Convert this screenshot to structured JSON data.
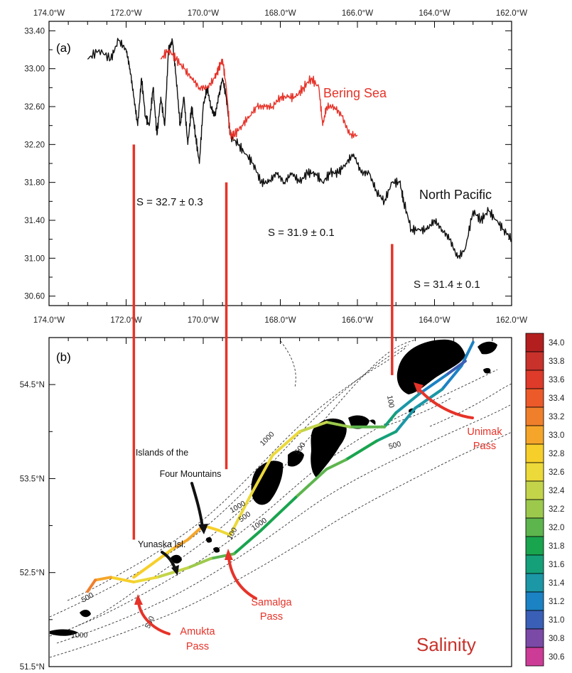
{
  "chart_data": [
    {
      "type": "line",
      "panel_label": "(a)",
      "x_ticks": [
        "174.0°W",
        "172.0°W",
        "170.0°W",
        "168.0°W",
        "166.0°W",
        "164.0°W",
        "162.0°W"
      ],
      "x_tick_values": [
        174,
        172,
        170,
        168,
        166,
        164,
        162
      ],
      "y_ticks": [
        "33.40",
        "33.00",
        "32.60",
        "32.20",
        "31.80",
        "31.40",
        "31.00",
        "30.60"
      ],
      "y_tick_values": [
        33.4,
        33.0,
        32.6,
        32.2,
        31.8,
        31.4,
        31.0,
        30.6
      ],
      "xlim": [
        174,
        162
      ],
      "ylim": [
        30.5,
        33.5
      ],
      "series": [
        {
          "name": "North Pacific",
          "color": "#111111",
          "x": [
            173.0,
            172.7,
            172.4,
            172.2,
            172.0,
            171.9,
            171.8,
            171.7,
            171.6,
            171.5,
            171.4,
            171.3,
            171.2,
            171.1,
            171.0,
            170.9,
            170.8,
            170.7,
            170.6,
            170.5,
            170.4,
            170.3,
            170.2,
            170.1,
            170.0,
            169.9,
            169.8,
            169.7,
            169.6,
            169.5,
            169.4,
            169.3,
            169.1,
            168.9,
            168.7,
            168.5,
            168.3,
            168.1,
            167.9,
            167.7,
            167.5,
            167.3,
            167.1,
            166.9,
            166.7,
            166.5,
            166.3,
            166.1,
            165.9,
            165.7,
            165.5,
            165.3,
            165.1,
            164.9,
            164.8,
            164.6,
            164.4,
            164.2,
            164.0,
            163.8,
            163.6,
            163.4,
            163.2,
            163.0,
            162.8,
            162.6,
            162.4,
            162.2,
            162.0
          ],
          "y": [
            33.1,
            33.2,
            33.1,
            33.3,
            33.2,
            33.0,
            32.7,
            32.4,
            32.9,
            32.5,
            32.4,
            32.8,
            32.3,
            32.7,
            32.4,
            33.2,
            33.3,
            32.9,
            32.4,
            32.7,
            32.2,
            32.6,
            32.3,
            32.0,
            32.6,
            32.8,
            32.6,
            32.5,
            32.7,
            32.9,
            32.7,
            32.3,
            32.2,
            32.1,
            32.0,
            31.8,
            31.8,
            31.9,
            31.8,
            31.9,
            31.8,
            31.9,
            31.9,
            31.8,
            31.9,
            31.9,
            32.0,
            32.1,
            31.9,
            31.9,
            31.7,
            31.6,
            31.8,
            31.8,
            31.6,
            31.3,
            31.3,
            31.3,
            31.4,
            31.3,
            31.2,
            31.0,
            31.1,
            31.5,
            31.4,
            31.5,
            31.4,
            31.3,
            31.2
          ]
        },
        {
          "name": "Bering Sea",
          "color": "#e63329",
          "x": [
            171.1,
            170.9,
            170.7,
            170.5,
            170.3,
            170.1,
            169.9,
            169.7,
            169.6,
            169.5,
            169.4,
            169.3,
            169.2,
            169.0,
            168.8,
            168.6,
            168.4,
            168.2,
            168.0,
            167.8,
            167.6,
            167.4,
            167.2,
            167.0,
            166.9,
            166.8,
            166.6,
            166.4,
            166.2,
            166.0
          ],
          "y": [
            33.1,
            33.2,
            33.1,
            33.0,
            32.9,
            32.8,
            32.8,
            32.9,
            33.0,
            33.1,
            32.8,
            32.3,
            32.3,
            32.4,
            32.5,
            32.6,
            32.6,
            32.6,
            32.7,
            32.7,
            32.7,
            32.8,
            32.9,
            32.8,
            32.4,
            32.6,
            32.6,
            32.5,
            32.3,
            32.3
          ]
        }
      ],
      "annotations": [
        {
          "text": "Bering Sea",
          "color": "#e63329"
        },
        {
          "text": "North Pacific",
          "color": "#111111"
        },
        {
          "text": "S = 32.7 ± 0.3"
        },
        {
          "text": "S = 31.9 ± 0.1"
        },
        {
          "text": "S = 31.4 ± 0.1"
        }
      ],
      "divider_lines_lon": [
        171.8,
        169.4,
        165.1
      ]
    },
    {
      "type": "heatmap",
      "panel_label": "(b)",
      "x_ticks": [
        "174.0°W",
        "172.0°W",
        "170.0°W",
        "168.0°W",
        "166.0°W",
        "164.0°W",
        "162.0°W"
      ],
      "x_tick_values": [
        174,
        172,
        170,
        168,
        166,
        164,
        162
      ],
      "y_ticks": [
        "54.5°N",
        "53.5°N",
        "52.5°N",
        "51.5°N"
      ],
      "y_tick_values": [
        54.5,
        53.5,
        52.5,
        51.5
      ],
      "xlim": [
        174,
        162
      ],
      "ylim": [
        51.5,
        55.0
      ],
      "title": "Salinity",
      "colorbar": {
        "labels": [
          "34.0",
          "33.8",
          "33.6",
          "33.4",
          "33.2",
          "33.0",
          "32.8",
          "32.6",
          "32.4",
          "32.2",
          "32.0",
          "31.8",
          "31.6",
          "31.4",
          "31.2",
          "31.0",
          "30.8",
          "30.6"
        ],
        "colors": [
          "#b31f1f",
          "#c8322b",
          "#de3b2a",
          "#ec5a2a",
          "#f07f2c",
          "#f5a62a",
          "#f7cf2a",
          "#ecd93a",
          "#c3d44a",
          "#9cc94c",
          "#5db54d",
          "#19a44e",
          "#15a07a",
          "#1b97a6",
          "#1b82c4",
          "#3a5fb6",
          "#7b4aa7",
          "#cc3c97"
        ]
      },
      "place_labels": [
        {
          "text": "Islands of the",
          "color": "#111111"
        },
        {
          "text": "Four Mountains",
          "color": "#111111"
        },
        {
          "text": "Yunaska Isl.",
          "color": "#111111"
        },
        {
          "text": "Unimak",
          "color": "#e63329"
        },
        {
          "text": "Pass",
          "color": "#e63329"
        },
        {
          "text": "Samalga",
          "color": "#e63329"
        },
        {
          "text": "Pass",
          "color": "#e63329"
        },
        {
          "text": "Amukta",
          "color": "#e63329"
        },
        {
          "text": "Pass",
          "color": "#e63329"
        }
      ],
      "contour_labels": [
        "100",
        "500",
        "1000",
        "500",
        "1000",
        "500",
        "1000",
        "100",
        "500",
        "500",
        "1000"
      ],
      "tracks": [
        {
          "name": "south",
          "lon": [
            163.0,
            163.3,
            163.8,
            164.5,
            165.0,
            165.5,
            166.3,
            166.8,
            167.6,
            168.5,
            169.2,
            169.8,
            170.4,
            171.2,
            171.8,
            172.4,
            172.8,
            173.0
          ],
          "lat": [
            54.95,
            54.7,
            54.45,
            54.25,
            54.0,
            53.9,
            53.7,
            53.6,
            53.3,
            52.95,
            52.7,
            52.65,
            52.55,
            52.45,
            52.4,
            52.45,
            52.42,
            52.3
          ],
          "salinity": [
            31.2,
            31.2,
            31.3,
            31.4,
            31.5,
            31.8,
            32.0,
            32.0,
            31.9,
            31.9,
            31.9,
            32.1,
            32.3,
            32.5,
            32.7,
            32.9,
            33.1,
            33.2
          ]
        },
        {
          "name": "north",
          "lon": [
            163.2,
            163.7,
            164.4,
            165.0,
            165.3,
            166.2,
            166.8,
            167.5,
            168.2,
            168.8,
            169.3,
            169.6,
            170.0,
            170.4,
            170.8,
            171.3,
            171.8
          ],
          "lat": [
            54.75,
            54.6,
            54.4,
            54.2,
            54.05,
            54.05,
            54.1,
            54.0,
            53.75,
            53.3,
            52.9,
            52.95,
            53.0,
            52.85,
            52.75,
            52.6,
            52.45
          ],
          "salinity": [
            30.9,
            31.1,
            31.3,
            31.5,
            31.8,
            32.2,
            32.4,
            32.6,
            32.7,
            32.6,
            32.5,
            32.7,
            32.9,
            33.0,
            32.9,
            32.8,
            32.8
          ]
        }
      ]
    }
  ]
}
